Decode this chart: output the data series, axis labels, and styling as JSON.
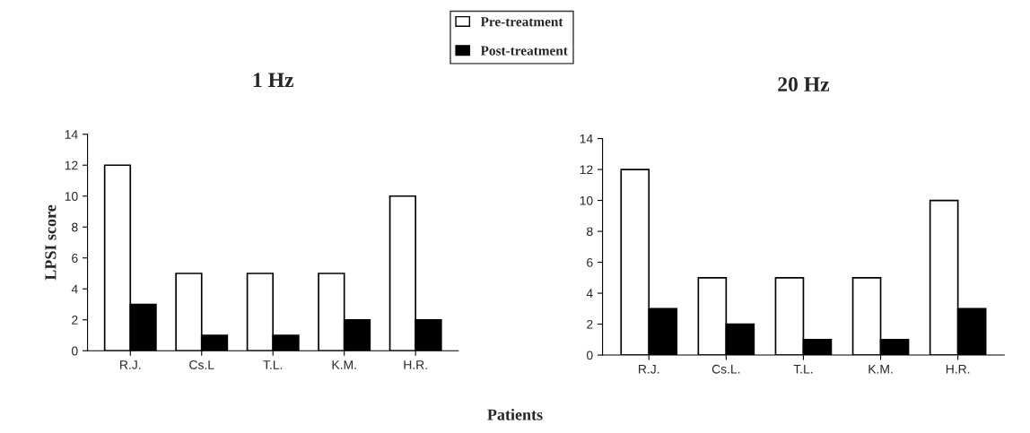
{
  "chart_data": [
    {
      "type": "bar",
      "title": "1 Hz",
      "ylabel": "LPSI score",
      "xlabel": "Patients",
      "categories": [
        "R.J.",
        "Cs.L",
        "T.L.",
        "K.M.",
        "H.R."
      ],
      "series": [
        {
          "name": "Pre-treatment",
          "color": "#ffffff",
          "values": [
            12,
            5,
            5,
            5,
            10
          ]
        },
        {
          "name": "Post-treatment",
          "color": "#000000",
          "values": [
            3,
            1,
            1,
            2,
            2
          ]
        }
      ],
      "ylim": [
        0,
        14
      ],
      "yticks": [
        0,
        2,
        4,
        6,
        8,
        10,
        12,
        14
      ],
      "grid": false,
      "legend": "top right"
    },
    {
      "type": "bar",
      "title": "20 Hz",
      "categories": [
        "R.J.",
        "Cs.L.",
        "T.L.",
        "K.M.",
        "H.R."
      ],
      "series": [
        {
          "color": "#ffffff",
          "values": [
            12,
            5,
            5,
            5,
            10
          ]
        },
        {
          "color": "#000000",
          "values": [
            3,
            2,
            1,
            1,
            3
          ]
        }
      ],
      "ylim": [
        0,
        14
      ],
      "yticks": [
        0,
        2,
        4,
        6,
        8,
        10,
        12,
        14
      ],
      "grid": false,
      "legend": false
    }
  ]
}
